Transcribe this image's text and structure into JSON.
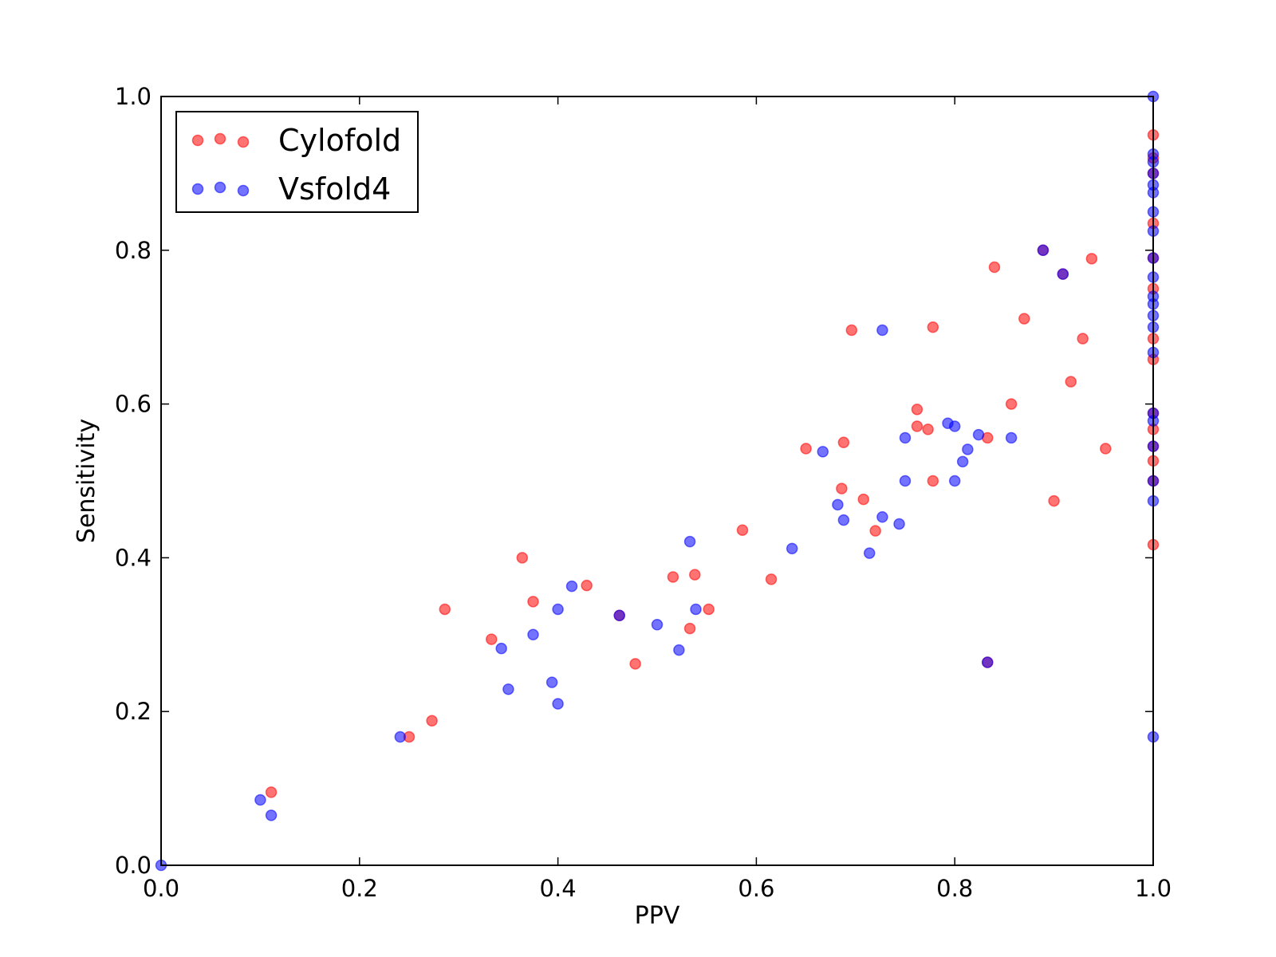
{
  "chart_data": {
    "type": "scatter",
    "xlabel": "PPV",
    "ylabel": "Sensitivity",
    "xlim": [
      0.0,
      1.0
    ],
    "ylim": [
      0.0,
      1.0
    ],
    "xticks": [
      "0.0",
      "0.2",
      "0.4",
      "0.6",
      "0.8",
      "1.0"
    ],
    "yticks": [
      "0.0",
      "0.2",
      "0.4",
      "0.6",
      "0.8",
      "1.0"
    ],
    "grid": false,
    "legend": {
      "placement": "top-left"
    },
    "series": [
      {
        "name": "Cylofold",
        "color": "#ff0000",
        "points": [
          [
            0.111,
            0.095
          ],
          [
            0.25,
            0.167
          ],
          [
            0.273,
            0.188
          ],
          [
            0.286,
            0.333
          ],
          [
            0.333,
            0.294
          ],
          [
            0.364,
            0.4
          ],
          [
            0.375,
            0.343
          ],
          [
            0.429,
            0.364
          ],
          [
            0.462,
            0.325
          ],
          [
            0.478,
            0.262
          ],
          [
            0.516,
            0.375
          ],
          [
            0.533,
            0.308
          ],
          [
            0.538,
            0.378
          ],
          [
            0.552,
            0.333
          ],
          [
            0.586,
            0.436
          ],
          [
            0.615,
            0.372
          ],
          [
            0.65,
            0.542
          ],
          [
            0.686,
            0.49
          ],
          [
            0.688,
            0.55
          ],
          [
            0.696,
            0.696
          ],
          [
            0.708,
            0.476
          ],
          [
            0.72,
            0.435
          ],
          [
            0.762,
            0.593
          ],
          [
            0.762,
            0.571
          ],
          [
            0.773,
            0.567
          ],
          [
            0.778,
            0.7
          ],
          [
            0.778,
            0.5
          ],
          [
            0.833,
            0.556
          ],
          [
            0.833,
            0.264
          ],
          [
            0.84,
            0.778
          ],
          [
            0.857,
            0.6
          ],
          [
            0.87,
            0.711
          ],
          [
            0.889,
            0.8
          ],
          [
            0.9,
            0.474
          ],
          [
            0.909,
            0.769
          ],
          [
            0.917,
            0.629
          ],
          [
            0.929,
            0.685
          ],
          [
            0.938,
            0.789
          ],
          [
            0.952,
            0.542
          ],
          [
            1.0,
            0.95
          ],
          [
            1.0,
            0.92
          ],
          [
            1.0,
            0.9
          ],
          [
            1.0,
            0.835
          ],
          [
            1.0,
            0.79
          ],
          [
            1.0,
            0.75
          ],
          [
            1.0,
            0.685
          ],
          [
            1.0,
            0.658
          ],
          [
            1.0,
            0.588
          ],
          [
            1.0,
            0.567
          ],
          [
            1.0,
            0.545
          ],
          [
            1.0,
            0.526
          ],
          [
            1.0,
            0.5
          ],
          [
            1.0,
            0.417
          ]
        ]
      },
      {
        "name": "Vsfold4",
        "color": "#0000ff",
        "points": [
          [
            0.0,
            0.0
          ],
          [
            0.1,
            0.085
          ],
          [
            0.111,
            0.065
          ],
          [
            0.241,
            0.167
          ],
          [
            0.343,
            0.282
          ],
          [
            0.35,
            0.229
          ],
          [
            0.375,
            0.3
          ],
          [
            0.394,
            0.238
          ],
          [
            0.4,
            0.333
          ],
          [
            0.4,
            0.21
          ],
          [
            0.414,
            0.363
          ],
          [
            0.462,
            0.325
          ],
          [
            0.5,
            0.313
          ],
          [
            0.522,
            0.28
          ],
          [
            0.533,
            0.421
          ],
          [
            0.539,
            0.333
          ],
          [
            0.636,
            0.412
          ],
          [
            0.667,
            0.538
          ],
          [
            0.682,
            0.469
          ],
          [
            0.688,
            0.449
          ],
          [
            0.714,
            0.406
          ],
          [
            0.727,
            0.453
          ],
          [
            0.727,
            0.696
          ],
          [
            0.744,
            0.444
          ],
          [
            0.75,
            0.556
          ],
          [
            0.75,
            0.5
          ],
          [
            0.793,
            0.575
          ],
          [
            0.8,
            0.571
          ],
          [
            0.8,
            0.5
          ],
          [
            0.808,
            0.525
          ],
          [
            0.813,
            0.541
          ],
          [
            0.824,
            0.56
          ],
          [
            0.833,
            0.264
          ],
          [
            0.857,
            0.556
          ],
          [
            0.889,
            0.8
          ],
          [
            0.909,
            0.769
          ],
          [
            1.0,
            1.0
          ],
          [
            1.0,
            0.925
          ],
          [
            1.0,
            0.915
          ],
          [
            1.0,
            0.9
          ],
          [
            1.0,
            0.885
          ],
          [
            1.0,
            0.875
          ],
          [
            1.0,
            0.85
          ],
          [
            1.0,
            0.825
          ],
          [
            1.0,
            0.79
          ],
          [
            1.0,
            0.765
          ],
          [
            1.0,
            0.74
          ],
          [
            1.0,
            0.73
          ],
          [
            1.0,
            0.715
          ],
          [
            1.0,
            0.7
          ],
          [
            1.0,
            0.667
          ],
          [
            1.0,
            0.588
          ],
          [
            1.0,
            0.578
          ],
          [
            1.0,
            0.545
          ],
          [
            1.0,
            0.5
          ],
          [
            1.0,
            0.474
          ],
          [
            1.0,
            0.167
          ]
        ]
      }
    ]
  }
}
